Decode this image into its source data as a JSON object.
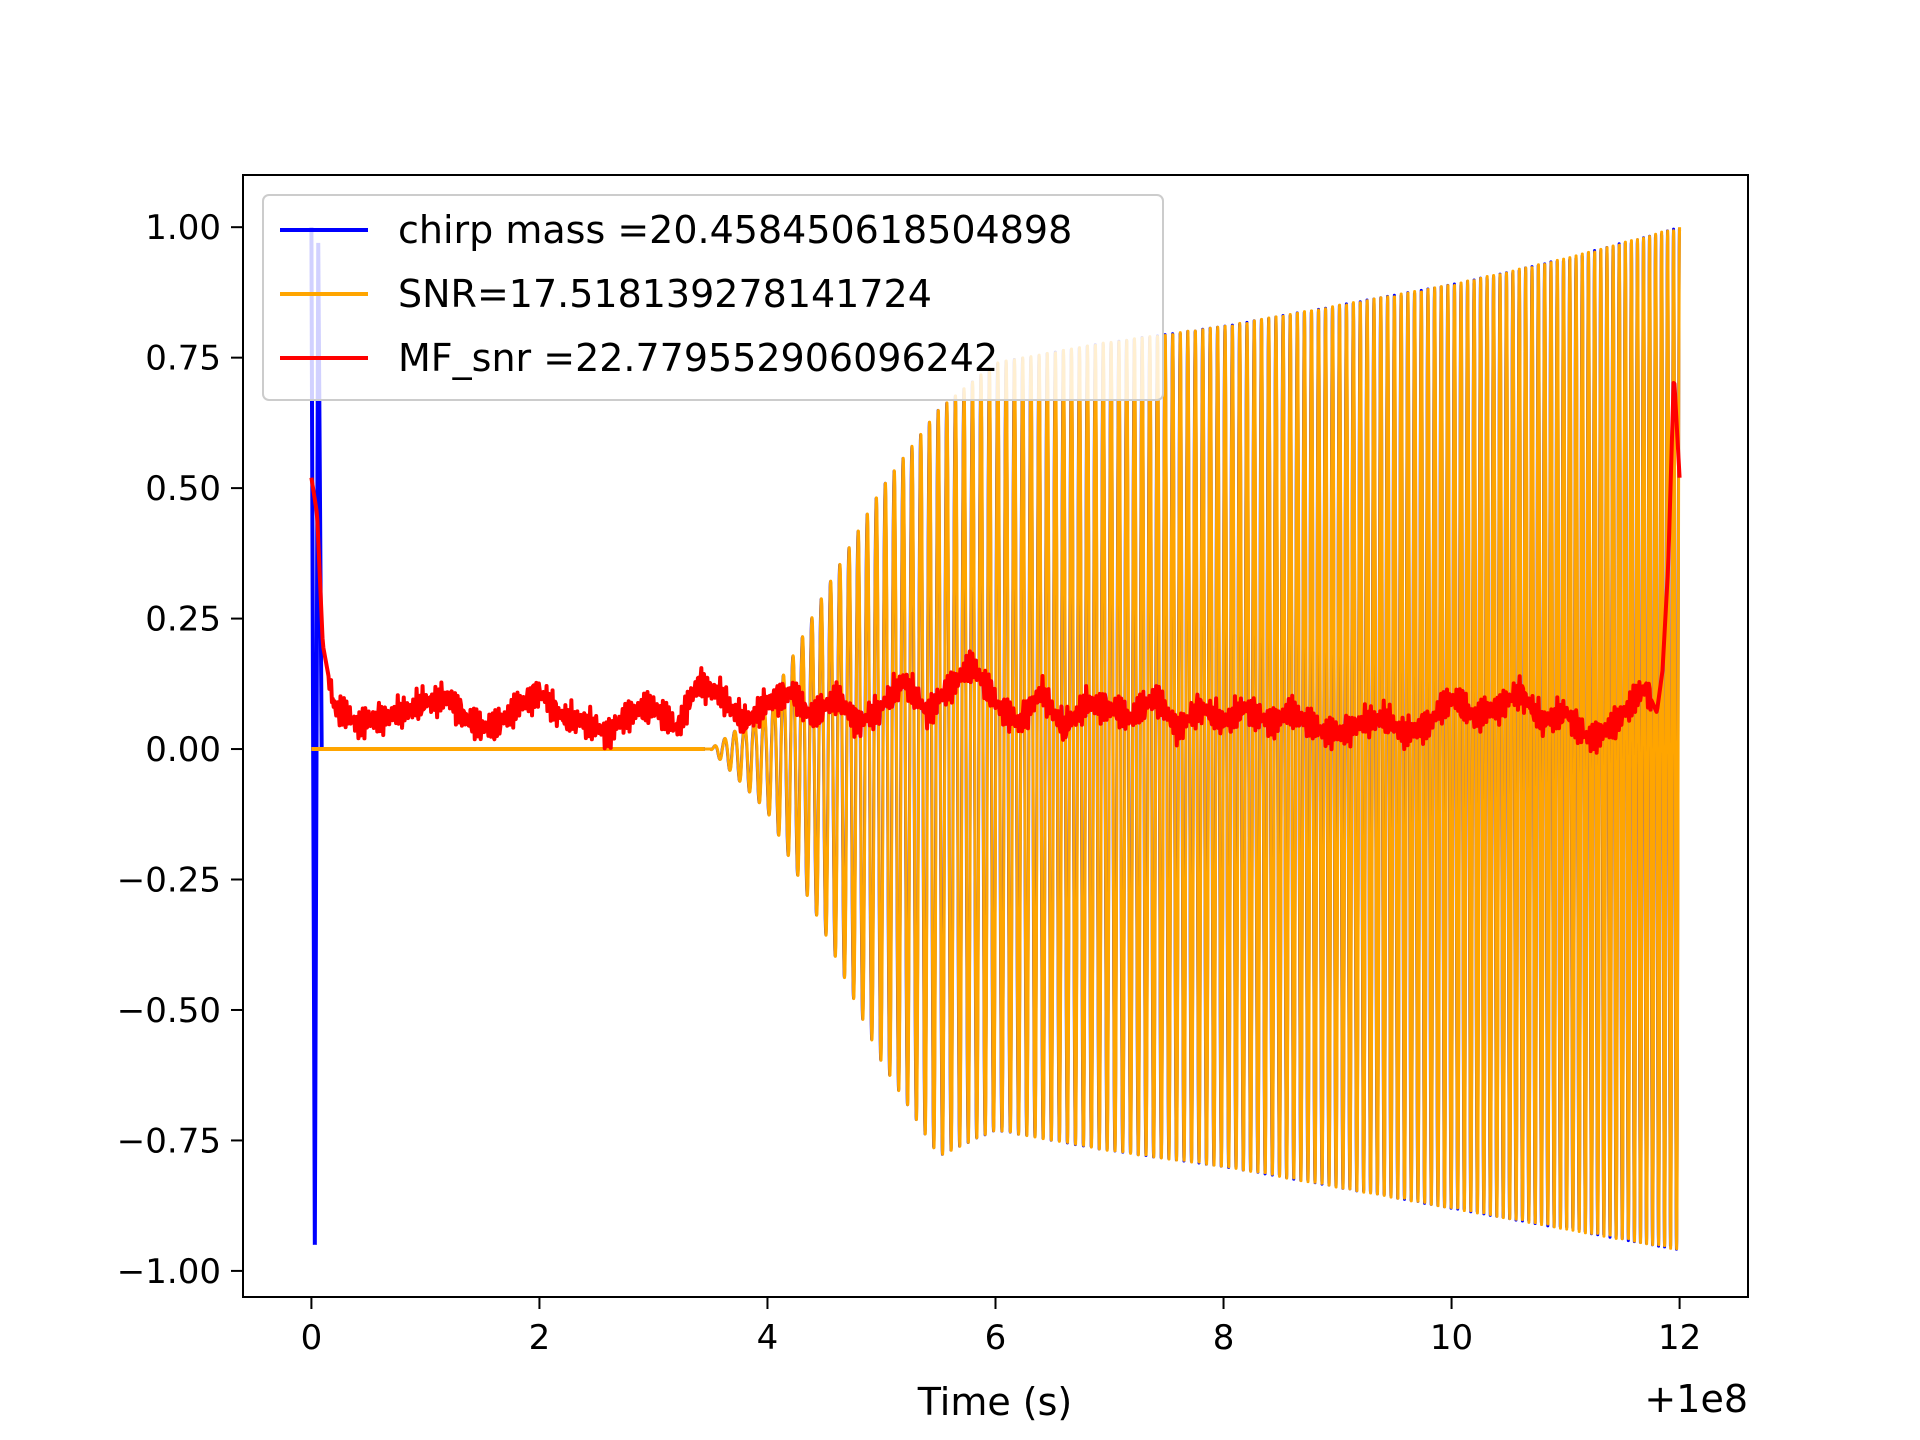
{
  "chart_data": {
    "type": "line",
    "title": "",
    "xlabel": "Time (s)",
    "ylabel": "",
    "x_offset_label": "+1e8",
    "xlim": [
      -0.6,
      12.6
    ],
    "ylim": [
      -1.05,
      1.1
    ],
    "x_ticks": [
      0,
      2,
      4,
      6,
      8,
      10,
      12
    ],
    "x_tick_labels": [
      "0",
      "2",
      "4",
      "6",
      "8",
      "10",
      "12"
    ],
    "y_ticks": [
      1.0,
      0.75,
      0.5,
      0.25,
      0.0,
      -0.25,
      -0.5,
      -0.75,
      -1.0
    ],
    "y_tick_labels": [
      "1.00",
      "0.75",
      "0.50",
      "0.25",
      "0.00",
      "−0.25",
      "−0.50",
      "−0.75",
      "−1.00"
    ],
    "legend_position": "top-left",
    "grid": false,
    "series": [
      {
        "name": "chirp mass =20.458450618504898",
        "color": "#0000ff",
        "kind": "chirp-with-initial-spike",
        "envelope_x": [
          0,
          3.5,
          4.0,
          4.5,
          5.0,
          5.5,
          6.0,
          7.0,
          8.0,
          9.0,
          10.0,
          11.0,
          12.0
        ],
        "envelope_upper": [
          0,
          0.0,
          0.08,
          0.3,
          0.5,
          0.65,
          0.74,
          0.78,
          0.81,
          0.85,
          0.89,
          0.94,
          1.0
        ],
        "envelope_lower": [
          0,
          0.0,
          -0.12,
          -0.35,
          -0.6,
          -0.78,
          -0.73,
          -0.77,
          -0.8,
          -0.84,
          -0.88,
          -0.92,
          -0.96
        ],
        "initial_spike": {
          "x": [
            0,
            0.03,
            0.06,
            0.09
          ],
          "y": [
            1.0,
            -0.95,
            0.97,
            0.0
          ]
        }
      },
      {
        "name": "SNR=17.518139278141724",
        "color": "#ffa500",
        "kind": "chirp",
        "envelope_x": [
          0,
          3.5,
          4.0,
          4.5,
          5.0,
          5.5,
          6.0,
          7.0,
          8.0,
          9.0,
          10.0,
          11.0,
          12.0
        ],
        "envelope_upper": [
          0,
          0.0,
          0.08,
          0.3,
          0.5,
          0.65,
          0.74,
          0.78,
          0.81,
          0.85,
          0.89,
          0.94,
          1.0
        ],
        "envelope_lower": [
          0,
          0.0,
          -0.12,
          -0.35,
          -0.6,
          -0.78,
          -0.73,
          -0.77,
          -0.8,
          -0.84,
          -0.88,
          -0.92,
          -0.96
        ]
      },
      {
        "name": "MF_snr =22.779552906096242",
        "color": "#ff0000",
        "kind": "noise",
        "x": [
          0,
          0.05,
          0.1,
          0.2,
          0.4,
          0.6,
          0.8,
          1.0,
          1.2,
          1.4,
          1.6,
          1.8,
          2.0,
          2.2,
          2.4,
          2.6,
          2.8,
          3.0,
          3.2,
          3.4,
          3.6,
          3.8,
          4.0,
          4.2,
          4.4,
          4.6,
          4.8,
          5.0,
          5.2,
          5.4,
          5.6,
          5.8,
          6.0,
          6.2,
          6.4,
          6.6,
          6.8,
          7.0,
          7.2,
          7.4,
          7.6,
          7.8,
          8.0,
          8.2,
          8.4,
          8.6,
          8.8,
          9.0,
          9.2,
          9.4,
          9.6,
          9.8,
          10.0,
          10.2,
          10.4,
          10.6,
          10.8,
          11.0,
          11.2,
          11.4,
          11.6,
          11.7,
          11.8,
          11.85,
          11.9,
          11.95,
          12.0
        ],
        "y": [
          0.52,
          0.45,
          0.2,
          0.08,
          0.05,
          0.06,
          0.07,
          0.09,
          0.1,
          0.05,
          0.04,
          0.08,
          0.11,
          0.06,
          0.05,
          0.03,
          0.07,
          0.08,
          0.04,
          0.13,
          0.1,
          0.05,
          0.09,
          0.11,
          0.06,
          0.1,
          0.05,
          0.08,
          0.13,
          0.07,
          0.12,
          0.16,
          0.09,
          0.05,
          0.11,
          0.04,
          0.09,
          0.08,
          0.06,
          0.1,
          0.04,
          0.08,
          0.05,
          0.08,
          0.05,
          0.07,
          0.04,
          0.03,
          0.05,
          0.06,
          0.03,
          0.05,
          0.1,
          0.06,
          0.08,
          0.11,
          0.05,
          0.07,
          0.02,
          0.04,
          0.09,
          0.12,
          0.07,
          0.15,
          0.35,
          0.72,
          0.52
        ]
      }
    ]
  }
}
